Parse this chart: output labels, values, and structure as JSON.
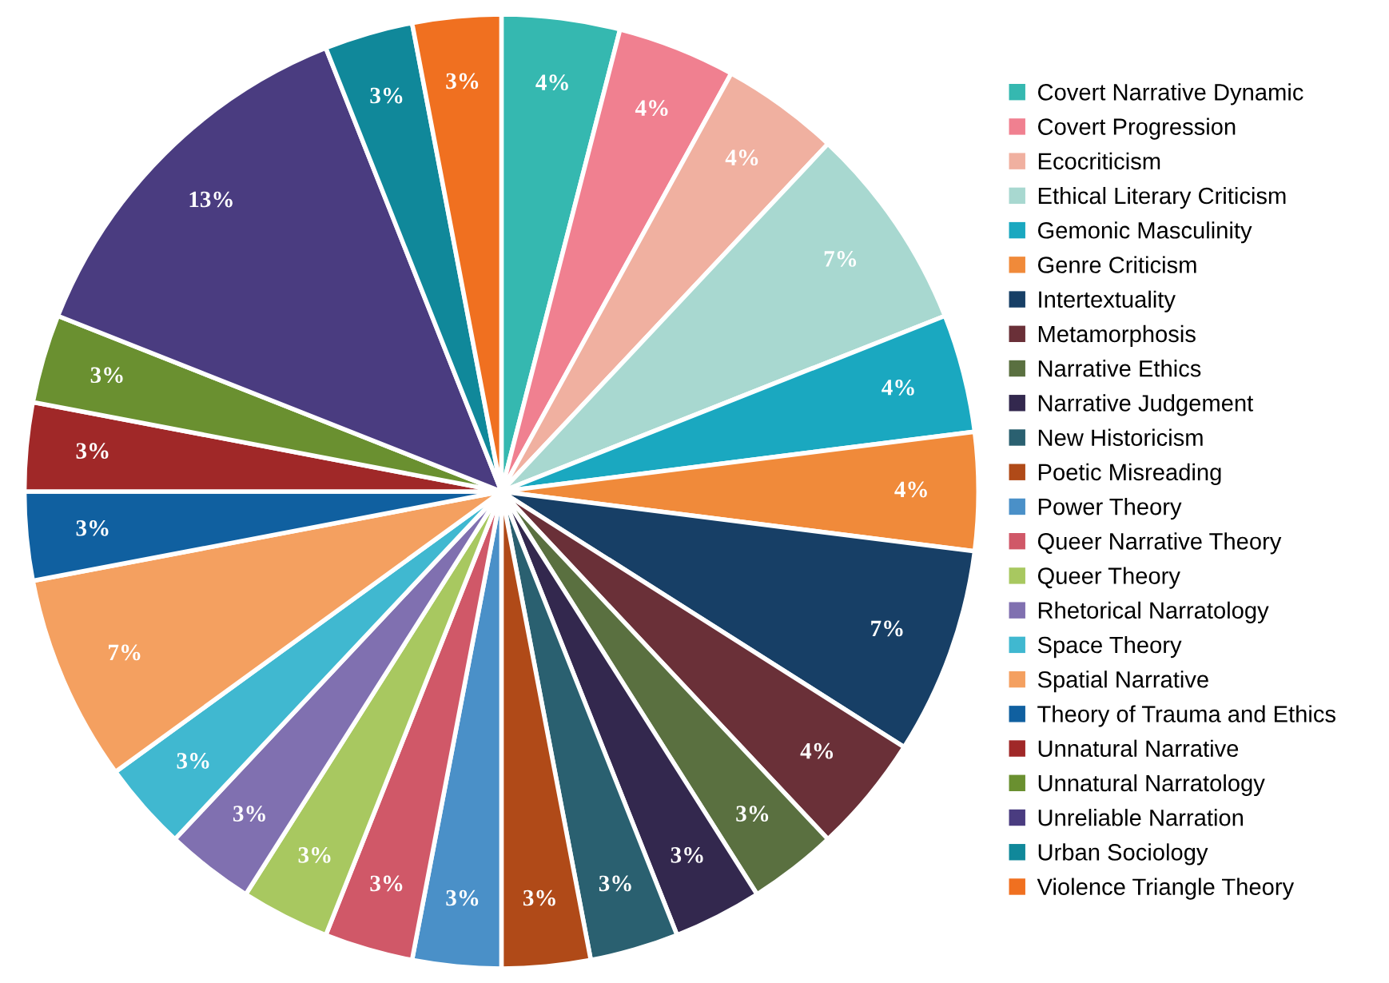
{
  "chart_data": {
    "type": "pie",
    "categories": [
      "Covert Narrative Dynamic",
      "Covert Progression",
      "Ecocriticism",
      "Ethical Literary Criticism",
      "Gemonic Masculinity",
      "Genre Criticism",
      "Intertextuality",
      "Metamorphosis",
      "Narrative Ethics",
      "Narrative Judgement",
      "New Historicism",
      "Poetic Misreading",
      "Power Theory",
      "Queer Narrative Theory",
      "Queer Theory",
      "Rhetorical Narratology",
      "Space Theory",
      "Spatial Narrative",
      "Theory of Trauma and Ethics",
      "Unnatural Narrative",
      "Unnatural Narratology",
      "Unreliable Narration",
      "Urban Sociology",
      "Violence Triangle Theory"
    ],
    "values": [
      4,
      4,
      4,
      7,
      4,
      4,
      7,
      4,
      3,
      3,
      3,
      3,
      3,
      3,
      3,
      3,
      3,
      7,
      3,
      3,
      3,
      13,
      3,
      3
    ],
    "value_labels": [
      "4%",
      "4%",
      "4%",
      "7%",
      "4%",
      "4%",
      "7%",
      "4%",
      "3%",
      "3%",
      "3%",
      "3%",
      "3%",
      "3%",
      "3%",
      "3%",
      "3%",
      "7%",
      "3%",
      "3%",
      "3%",
      "13%",
      "3%",
      "3%"
    ],
    "colors": [
      "#35b8b0",
      "#f08090",
      "#f0b0a0",
      "#a8d8d0",
      "#1aa8c0",
      "#f08a3a",
      "#173f66",
      "#6a3038",
      "#5a7040",
      "#33284e",
      "#2a6070",
      "#b04a18",
      "#4a90c8",
      "#d05868",
      "#a8c860",
      "#8070b0",
      "#40b8d0",
      "#f4a060",
      "#1060a0",
      "#a02828",
      "#6a9030",
      "#4a3c80",
      "#10889a",
      "#f07020"
    ],
    "legend": "right"
  }
}
